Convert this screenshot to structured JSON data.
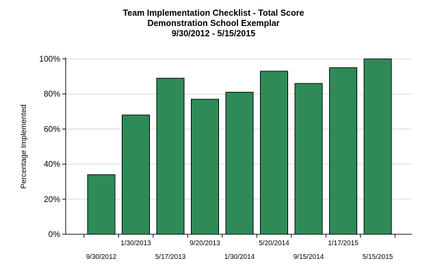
{
  "chart_data": {
    "type": "bar",
    "title": "Team Implementation Checklist - Total Score",
    "subtitle": "Demonstration School Exemplar",
    "subtitle2": "9/30/2012 - 5/15/2015",
    "xlabel": "",
    "ylabel": "Percentage Implemented",
    "ylim": [
      0,
      100
    ],
    "yticks": [
      "0%",
      "20%",
      "40%",
      "60%",
      "80%",
      "100%"
    ],
    "ytick_values": [
      0,
      20,
      40,
      60,
      80,
      100
    ],
    "grid": true,
    "categories": [
      "9/30/2012",
      "1/30/2013",
      "5/17/2013",
      "9/20/2013",
      "1/30/2014",
      "5/20/2014",
      "9/15/2014",
      "1/17/2015",
      "5/15/2015"
    ],
    "values": [
      34,
      68,
      89,
      77,
      81,
      93,
      86,
      95,
      100
    ],
    "bar_color": "#2e8b57"
  }
}
